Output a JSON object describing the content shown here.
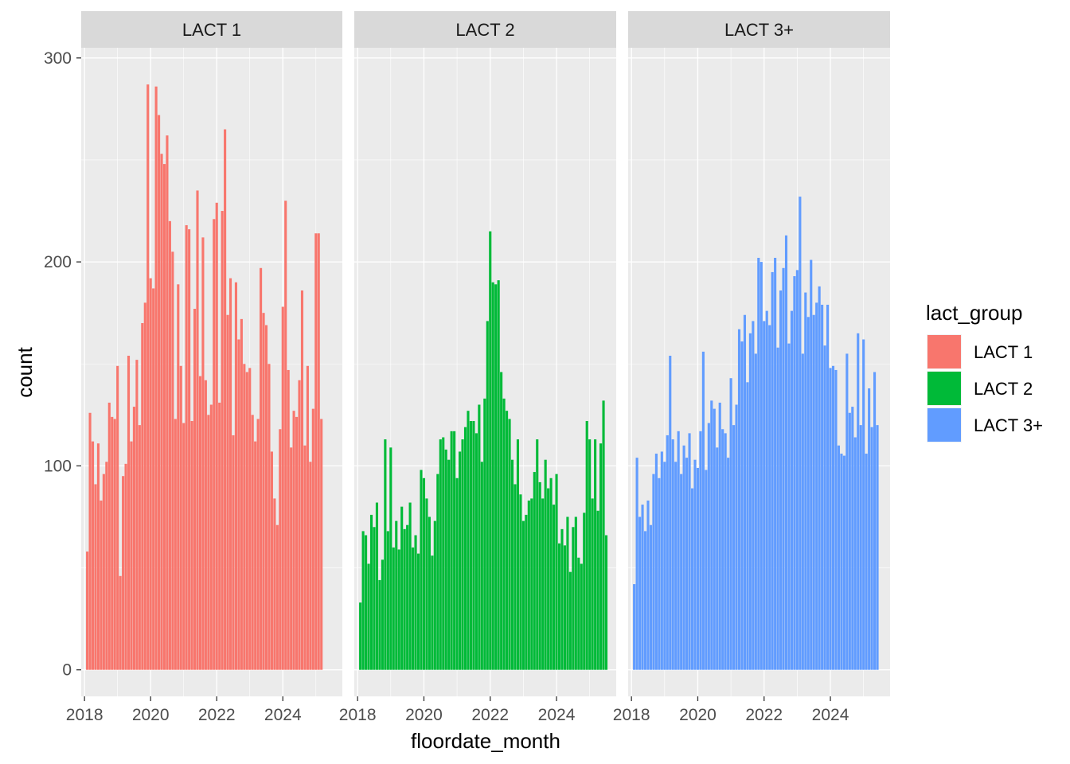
{
  "chart_data": {
    "type": "bar",
    "xlabel": "floordate_month",
    "ylabel": "count",
    "ylim": [
      -13,
      305
    ],
    "yticks": [
      0,
      100,
      200,
      300
    ],
    "xlim": [
      2017.9,
      2025.8
    ],
    "xticks": [
      2018,
      2020,
      2022,
      2024
    ],
    "x_start_year": 2018,
    "x_start_month": 2,
    "legend": {
      "title": "lact_group",
      "position": "right",
      "entries": [
        "LACT 1",
        "LACT 2",
        "LACT 3+"
      ]
    },
    "panels": [
      {
        "name": "LACT 1",
        "color": "#F8766D",
        "values": [
          58,
          126,
          112,
          91,
          111,
          83,
          96,
          102,
          131,
          124,
          123,
          149,
          46,
          95,
          101,
          154,
          112,
          129,
          152,
          120,
          170,
          180,
          287,
          192,
          187,
          286,
          272,
          253,
          248,
          262,
          220,
          205,
          123,
          189,
          149,
          121,
          218,
          216,
          122,
          177,
          235,
          144,
          212,
          142,
          125,
          130,
          221,
          229,
          131,
          225,
          265,
          174,
          192,
          115,
          190,
          162,
          172,
          150,
          146,
          148,
          125,
          112,
          123,
          197,
          175,
          169,
          150,
          107,
          84,
          71,
          118,
          178,
          230,
          147,
          109,
          127,
          124,
          142,
          186,
          110,
          149,
          102,
          128,
          214,
          214,
          123
        ]
      },
      {
        "name": "LACT 2",
        "color": "#00BA38",
        "values": [
          33,
          68,
          66,
          52,
          76,
          70,
          82,
          44,
          54,
          113,
          68,
          109,
          60,
          73,
          59,
          80,
          69,
          71,
          82,
          60,
          66,
          57,
          98,
          94,
          84,
          75,
          56,
          73,
          96,
          113,
          114,
          108,
          103,
          117,
          117,
          94,
          107,
          113,
          119,
          127,
          122,
          122,
          116,
          130,
          102,
          133,
          171,
          215,
          190,
          189,
          191,
          146,
          133,
          127,
          123,
          103,
          91,
          113,
          86,
          73,
          76,
          83,
          84,
          97,
          113,
          92,
          84,
          103,
          89,
          94,
          81,
          96,
          62,
          69,
          61,
          75,
          48,
          70,
          75,
          55,
          52,
          77,
          122,
          113,
          84,
          113,
          78,
          111,
          132,
          66
        ]
      },
      {
        "name": "LACT 3+",
        "color": "#619CFF",
        "values": [
          42,
          104,
          75,
          81,
          68,
          83,
          71,
          96,
          106,
          94,
          107,
          102,
          115,
          154,
          113,
          102,
          117,
          96,
          110,
          104,
          116,
          89,
          103,
          99,
          117,
          156,
          98,
          121,
          132,
          128,
          109,
          131,
          118,
          116,
          104,
          143,
          120,
          130,
          167,
          161,
          174,
          141,
          165,
          171,
          155,
          202,
          200,
          171,
          176,
          169,
          195,
          202,
          158,
          186,
          197,
          213,
          160,
          176,
          193,
          196,
          232,
          155,
          185,
          173,
          201,
          174,
          180,
          188,
          179,
          159,
          179,
          148,
          149,
          147,
          110,
          106,
          105,
          155,
          126,
          129,
          114,
          165,
          120,
          162,
          106,
          138,
          119,
          146,
          120
        ]
      }
    ]
  }
}
